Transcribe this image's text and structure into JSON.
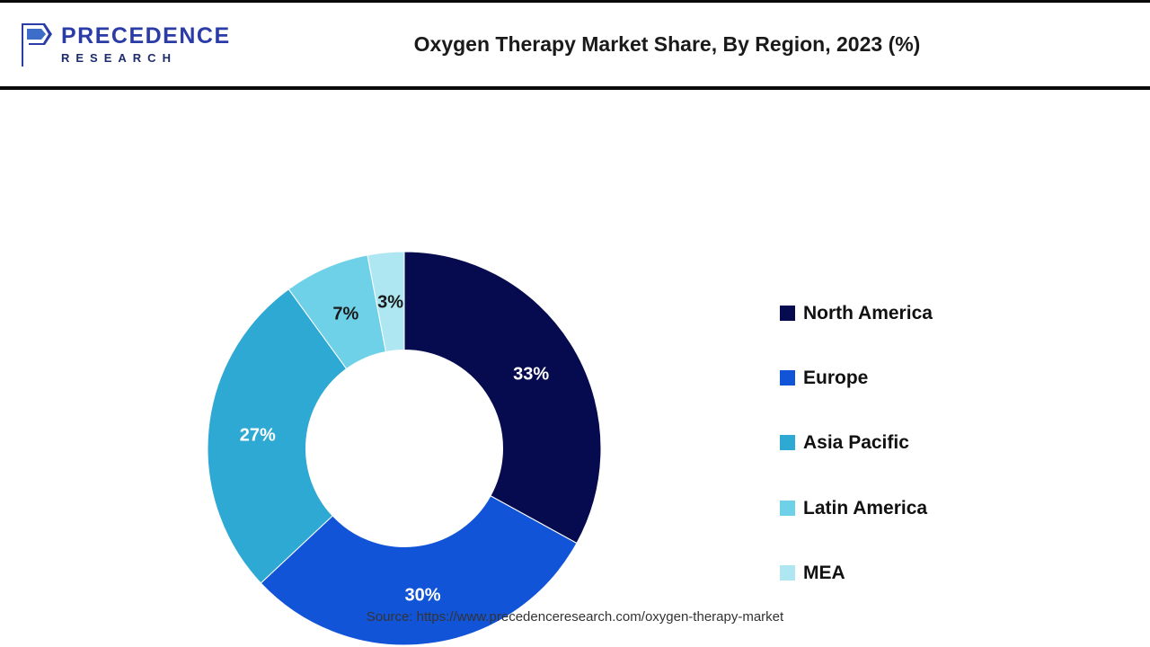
{
  "header": {
    "logo": {
      "line1": "PRECEDENCE",
      "line2": "RESEARCH",
      "color_primary": "#2b3ca6",
      "color_secondary": "#1b2b6b"
    },
    "title": "Oxygen Therapy Market Share, By Region, 2023 (%)"
  },
  "chart_data": {
    "type": "pie",
    "subtype": "donut",
    "title": "Oxygen Therapy Market Share, By Region, 2023 (%)",
    "categories": [
      "North America",
      "Europe",
      "Asia Pacific",
      "Latin America",
      "MEA"
    ],
    "values": [
      33,
      30,
      27,
      7,
      3
    ],
    "unit": "%",
    "colors": [
      "#060b4f",
      "#1254d8",
      "#2ea9d4",
      "#6fd1e8",
      "#aee7f2"
    ],
    "slice_label_colors": [
      "#ffffff",
      "#ffffff",
      "#ffffff",
      "#1a1a1a",
      "#1a1a1a"
    ],
    "slice_labels": [
      "33%",
      "30%",
      "27%",
      "7%",
      "3%"
    ],
    "start_angle_deg": 0,
    "direction": "clockwise",
    "inner_radius_ratio": 0.5,
    "legend_position": "right"
  },
  "footer": {
    "source": "Source: https://www.precedenceresearch.com/oxygen-therapy-market"
  }
}
